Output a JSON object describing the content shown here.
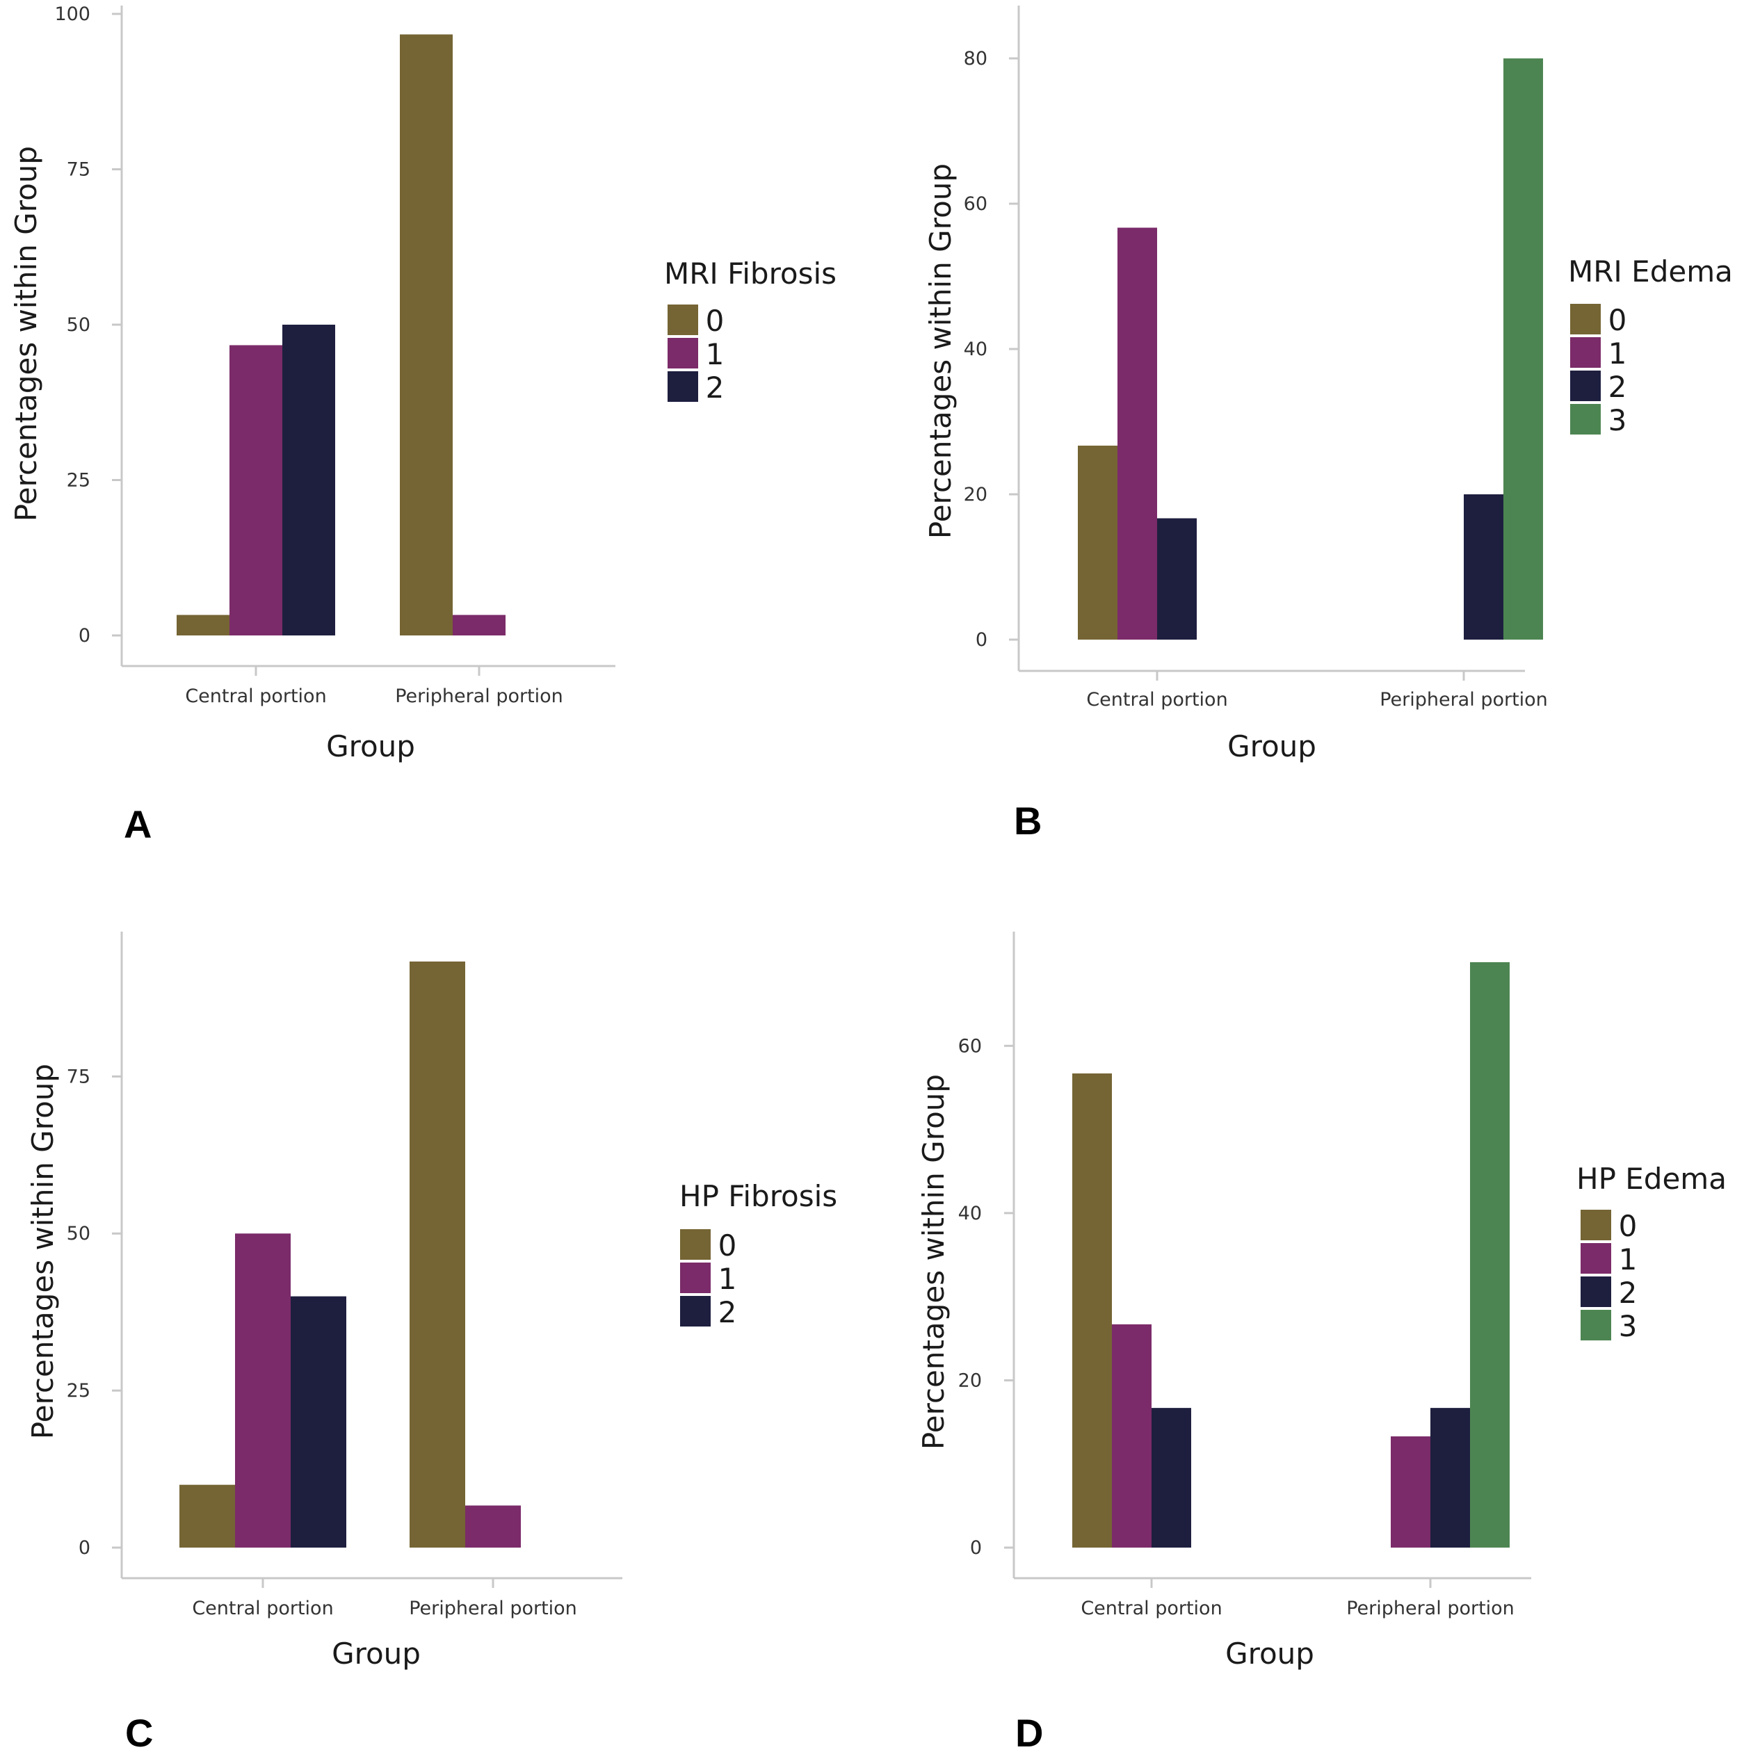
{
  "colors": {
    "0": "#756534",
    "1": "#7b2b69",
    "2": "#1e1f3f",
    "3": "#4d8552",
    "axis": "#c8c8c8"
  },
  "chart_data": [
    {
      "panel": "A",
      "type": "bar",
      "categories": [
        "Central portion",
        "Peripheral portion"
      ],
      "legend_title": "MRI Fibrosis",
      "series": [
        {
          "name": "0",
          "values": [
            3.3,
            96.7
          ]
        },
        {
          "name": "1",
          "values": [
            46.7,
            3.3
          ]
        },
        {
          "name": "2",
          "values": [
            50,
            0
          ]
        }
      ],
      "xlabel": "Group",
      "ylabel": "Percentages within Group",
      "ylim": [
        0,
        100
      ],
      "yticks": [
        0,
        25,
        50,
        75,
        100
      ],
      "legend_position": "right"
    },
    {
      "panel": "B",
      "type": "bar",
      "categories": [
        "Central portion",
        "Peripheral portion"
      ],
      "legend_title": "MRI Edema",
      "series": [
        {
          "name": "0",
          "values": [
            26.7,
            0
          ]
        },
        {
          "name": "1",
          "values": [
            56.7,
            0
          ]
        },
        {
          "name": "2",
          "values": [
            16.7,
            20
          ]
        },
        {
          "name": "3",
          "values": [
            0,
            80
          ]
        }
      ],
      "xlabel": "Group",
      "ylabel": "Percentages within Group",
      "ylim": [
        0,
        80
      ],
      "yticks": [
        0,
        20,
        40,
        60,
        80
      ],
      "legend_position": "right"
    },
    {
      "panel": "C",
      "type": "bar",
      "categories": [
        "Central portion",
        "Peripheral portion"
      ],
      "legend_title": "HP Fibrosis",
      "series": [
        {
          "name": "0",
          "values": [
            10,
            93.3
          ]
        },
        {
          "name": "1",
          "values": [
            50,
            6.7
          ]
        },
        {
          "name": "2",
          "values": [
            40,
            0
          ]
        }
      ],
      "xlabel": "Group",
      "ylabel": "Percentages within Group",
      "ylim": [
        0,
        93.3
      ],
      "yticks": [
        0,
        25,
        50,
        75
      ],
      "legend_position": "right"
    },
    {
      "panel": "D",
      "type": "bar",
      "categories": [
        "Central portion",
        "Peripheral portion"
      ],
      "legend_title": "HP Edema",
      "series": [
        {
          "name": "0",
          "values": [
            56.7,
            0
          ]
        },
        {
          "name": "1",
          "values": [
            26.7,
            13.3
          ]
        },
        {
          "name": "2",
          "values": [
            16.7,
            16.7
          ]
        },
        {
          "name": "3",
          "values": [
            0,
            70
          ]
        }
      ],
      "xlabel": "Group",
      "ylabel": "Percentages within Group",
      "ylim": [
        0,
        70
      ],
      "yticks": [
        0,
        20,
        40,
        60
      ],
      "legend_position": "right"
    }
  ]
}
